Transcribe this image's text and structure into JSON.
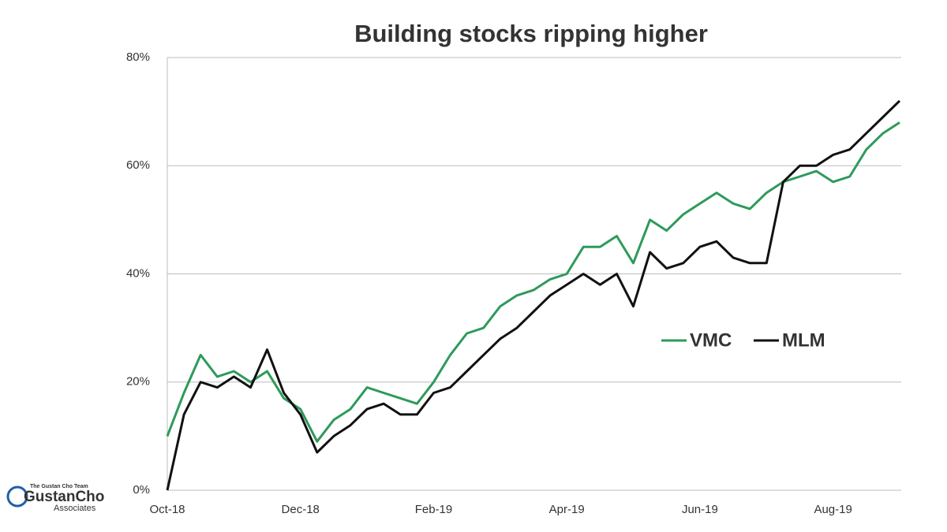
{
  "chart_data": {
    "type": "line",
    "title": "Building stocks ripping higher",
    "categories": [
      "Oct-18",
      null,
      null,
      null,
      null,
      null,
      null,
      null,
      "Dec-18",
      null,
      null,
      null,
      null,
      null,
      null,
      null,
      "Feb-19",
      null,
      null,
      null,
      null,
      null,
      null,
      null,
      "Apr-19",
      null,
      null,
      null,
      null,
      null,
      null,
      null,
      "Jun-19",
      null,
      null,
      null,
      null,
      null,
      null,
      null,
      "Aug-19",
      null,
      null,
      null,
      null
    ],
    "series": [
      {
        "name": "VMC",
        "color": "#2e9a5a",
        "values": [
          10,
          18,
          25,
          21,
          22,
          20,
          22,
          17,
          15,
          9,
          13,
          15,
          19,
          18,
          17,
          16,
          20,
          25,
          29,
          30,
          34,
          36,
          37,
          39,
          40,
          45,
          45,
          47,
          42,
          50,
          48,
          51,
          53,
          55,
          53,
          52,
          55,
          57,
          58,
          59,
          57,
          58,
          63,
          66,
          68
        ]
      },
      {
        "name": "MLM",
        "color": "#111111",
        "values": [
          0,
          14,
          20,
          19,
          21,
          19,
          26,
          18,
          14,
          7,
          10,
          12,
          15,
          16,
          14,
          14,
          18,
          19,
          22,
          25,
          28,
          30,
          33,
          36,
          38,
          40,
          38,
          40,
          34,
          44,
          41,
          42,
          45,
          46,
          43,
          42,
          42,
          57,
          60,
          60,
          62,
          63,
          66,
          69,
          72
        ]
      }
    ],
    "ylim": [
      0,
      80
    ],
    "yticks": [
      {
        "value": 0,
        "label": "0%"
      },
      {
        "value": 20,
        "label": "20%"
      },
      {
        "value": 40,
        "label": "40%"
      },
      {
        "value": 60,
        "label": "60%"
      },
      {
        "value": 80,
        "label": "80%"
      }
    ],
    "grid": true,
    "legend": "right"
  },
  "watermark": {
    "team": "The Gustan Cho Team",
    "name": "GustanCho",
    "sub": "Associates"
  }
}
